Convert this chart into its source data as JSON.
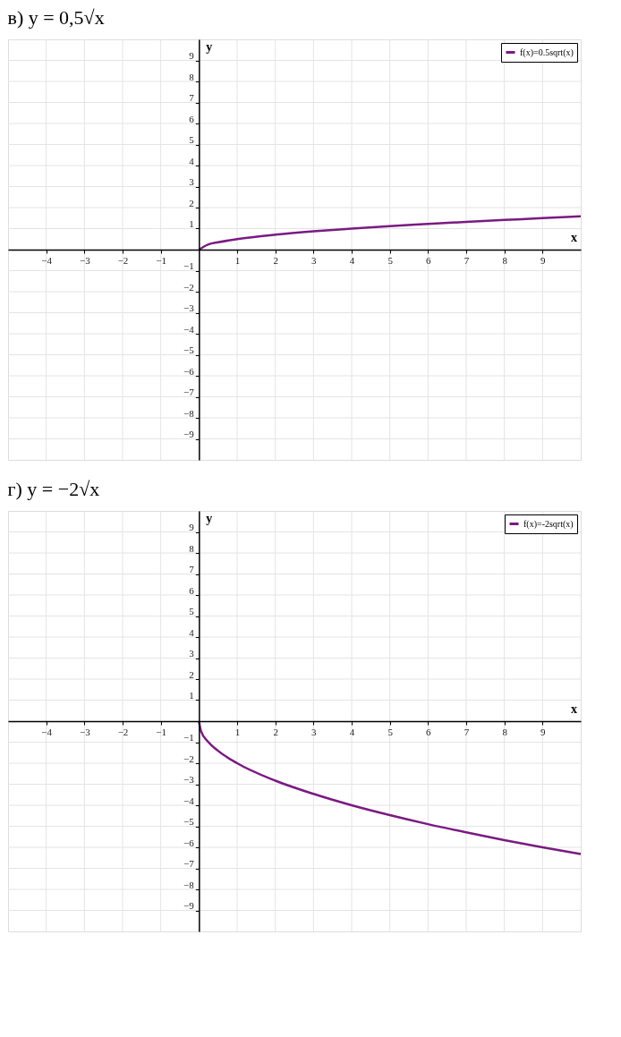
{
  "chart_data": [
    {
      "type": "line",
      "title": "в) y = 0,5√x",
      "xlabel": "x",
      "ylabel": "y",
      "x": [
        0,
        0.25,
        0.5,
        1,
        2,
        3,
        4,
        5,
        6,
        7,
        8,
        9,
        10
      ],
      "series": [
        {
          "name": "f(x)=0.5sqrt(x)",
          "color": "#7a1a82",
          "values": [
            0,
            0.25,
            0.35,
            0.5,
            0.71,
            0.87,
            1,
            1.12,
            1.22,
            1.32,
            1.41,
            1.5,
            1.58
          ]
        }
      ],
      "xlim": [
        -5,
        10
      ],
      "ylim": [
        -10,
        10
      ],
      "xticks": [
        -4,
        -3,
        -2,
        -1,
        1,
        2,
        3,
        4,
        5,
        6,
        7,
        8,
        9
      ],
      "yticks": [
        -9,
        -8,
        -7,
        -6,
        -5,
        -4,
        -3,
        -2,
        -1,
        1,
        2,
        3,
        4,
        5,
        6,
        7,
        8,
        9
      ],
      "grid": true,
      "legend": "top right"
    },
    {
      "type": "line",
      "title": "г) y = −2√x",
      "xlabel": "x",
      "ylabel": "y",
      "x": [
        0,
        0.05,
        0.25,
        0.5,
        1,
        2,
        3,
        4,
        5,
        6,
        7,
        8,
        9,
        10
      ],
      "series": [
        {
          "name": "f(x)=-2sqrt(x)",
          "color": "#7a1a82",
          "values": [
            0,
            -0.45,
            -1,
            -1.41,
            -2,
            -2.83,
            -3.46,
            -4,
            -4.47,
            -4.9,
            -5.29,
            -5.66,
            -6,
            -6.32
          ]
        }
      ],
      "xlim": [
        -5,
        10
      ],
      "ylim": [
        -10,
        10
      ],
      "xticks": [
        -4,
        -3,
        -2,
        -1,
        1,
        2,
        3,
        4,
        5,
        6,
        7,
        8,
        9
      ],
      "yticks": [
        -9,
        -8,
        -7,
        -6,
        -5,
        -4,
        -3,
        -2,
        -1,
        1,
        2,
        3,
        4,
        5,
        6,
        7,
        8,
        9
      ],
      "grid": true,
      "legend": "top right"
    }
  ]
}
